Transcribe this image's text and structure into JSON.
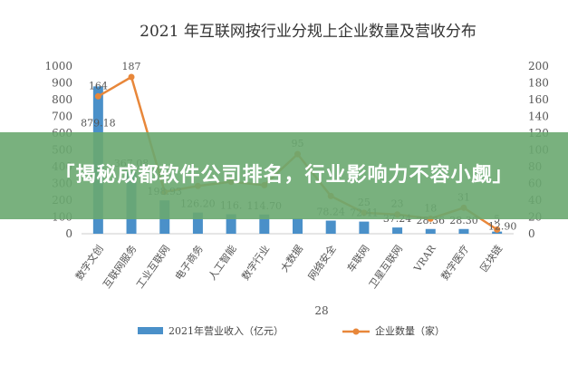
{
  "overlay": {
    "headline": "「揭秘成都软件公司排名，行业影响力不容小觑」"
  },
  "stray_label": "28",
  "chart_data": {
    "type": "bar",
    "title": "2021 年互联网按行业分规上企业数量及营收分布",
    "categories": [
      "数字文创",
      "互联网服务",
      "工业互联网",
      "电子商务",
      "人工智能",
      "数字行业",
      "大数据",
      "网络安全",
      "车联网",
      "卫星互联网",
      "VRAR",
      "数字医疗",
      "区块链"
    ],
    "y_left": {
      "ticks": [
        0,
        100,
        200,
        300,
        400,
        500,
        600,
        700,
        800,
        900,
        1000
      ],
      "ylim": [
        0,
        1000
      ]
    },
    "y_right": {
      "ticks": [
        0,
        20,
        40,
        60,
        80,
        100,
        120,
        140,
        160,
        180,
        200
      ],
      "ylim": [
        0,
        200
      ]
    },
    "series": [
      {
        "name": "2021年营业收入（亿元）",
        "kind": "bar",
        "axis": "left",
        "color": "#4a90c9",
        "values": [
          879.18,
          367.08,
          198.93,
          126.2,
          116.4,
          114.7,
          91.0,
          78.24,
          72.41,
          37.24,
          28.36,
          28.3,
          12.9
        ],
        "labels": [
          "879.18",
          "367.08",
          "198.93",
          "126.20",
          "116.",
          "114.70",
          "",
          "78.24",
          "72.41",
          "37.24",
          "28.36",
          "28.30",
          "12.90"
        ]
      },
      {
        "name": "企业数量（家）",
        "kind": "line",
        "axis": "right",
        "color": "#e8873a",
        "values": [
          164,
          187,
          50,
          57,
          62,
          58,
          95,
          45,
          25,
          23,
          18,
          31,
          5
        ],
        "labels": [
          "164",
          "187",
          "",
          "",
          "",
          "",
          "95",
          "",
          "25",
          "23",
          "18",
          "31",
          "5"
        ]
      }
    ],
    "legend": {
      "position": "bottom"
    }
  }
}
